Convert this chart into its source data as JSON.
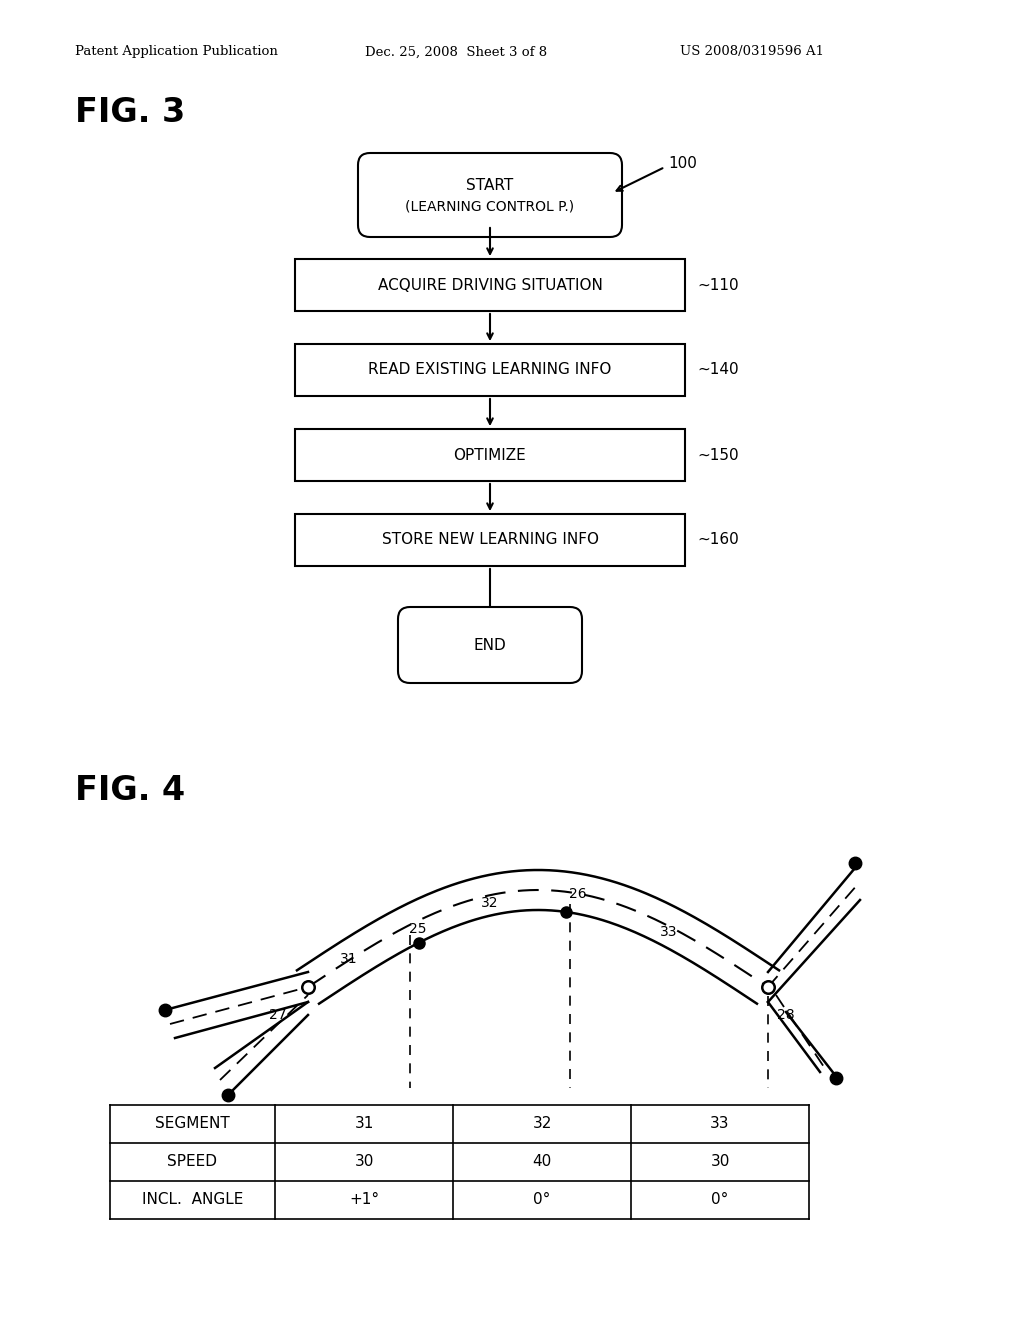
{
  "bg_color": "#ffffff",
  "header_text": "Patent Application Publication",
  "header_date": "Dec. 25, 2008  Sheet 3 of 8",
  "header_patent": "US 2008/0319596 A1",
  "fig3_label": "FIG. 3",
  "fig4_label": "FIG. 4",
  "flowchart": {
    "start_label": "100",
    "boxes": [
      {
        "text": "ACQUIRE DRIVING SITUATION",
        "label": "110"
      },
      {
        "text": "READ EXISTING LEARNING INFO",
        "label": "140"
      },
      {
        "text": "OPTIMIZE",
        "label": "150"
      },
      {
        "text": "STORE NEW LEARNING INFO",
        "label": "160"
      }
    ]
  },
  "table": {
    "row_labels": [
      "SEGMENT",
      "SPEED",
      "INCL.  ANGLE"
    ],
    "col1": [
      "31",
      "30",
      "+1°"
    ],
    "col2": [
      "32",
      "40",
      "0°"
    ],
    "col3": [
      "33",
      "30",
      "0°"
    ]
  }
}
